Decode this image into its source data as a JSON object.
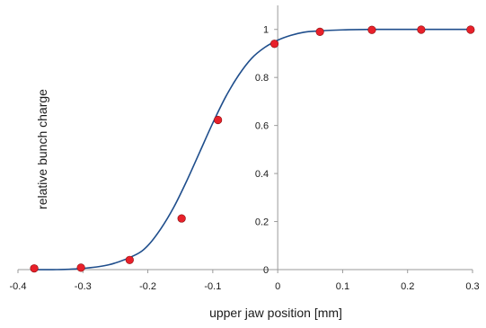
{
  "chart_data": {
    "type": "scatter",
    "xlabel": "upper jaw position [mm]",
    "ylabel": "relative bunch  charge",
    "xlim": [
      -0.4,
      0.3
    ],
    "ylim": [
      0,
      1.1
    ],
    "x_ticks": [
      "-0.4",
      "-0.3",
      "-0.2",
      "-0.1",
      "0",
      "0.1",
      "0.2",
      "0.3"
    ],
    "y_ticks": [
      "0",
      "0.2",
      "0.4",
      "0.6",
      "0.8",
      "1"
    ],
    "grid": false,
    "legend": "none",
    "series": [
      {
        "kind": "markers",
        "color": "#e8202a",
        "x": [
          -0.375,
          -0.303,
          -0.228,
          -0.148,
          -0.092,
          -0.005,
          0.065,
          0.145,
          0.221,
          0.297
        ],
        "y": [
          0.005,
          0.008,
          0.04,
          0.213,
          0.623,
          0.94,
          0.99,
          0.998,
          0.999,
          0.999
        ]
      },
      {
        "kind": "fit-line",
        "color": "#1f4e8c",
        "x": [
          -0.38,
          -0.34,
          -0.3,
          -0.26,
          -0.22,
          -0.2,
          -0.18,
          -0.16,
          -0.14,
          -0.12,
          -0.1,
          -0.08,
          -0.06,
          -0.04,
          -0.02,
          0.0,
          0.02,
          0.04,
          0.06,
          0.1,
          0.15,
          0.2,
          0.25,
          0.3
        ],
        "y": [
          0.0,
          0.0,
          0.005,
          0.02,
          0.06,
          0.1,
          0.17,
          0.26,
          0.37,
          0.49,
          0.61,
          0.72,
          0.81,
          0.88,
          0.925,
          0.955,
          0.975,
          0.988,
          0.993,
          0.998,
          1.0,
          1.0,
          1.0,
          1.0
        ]
      }
    ]
  }
}
